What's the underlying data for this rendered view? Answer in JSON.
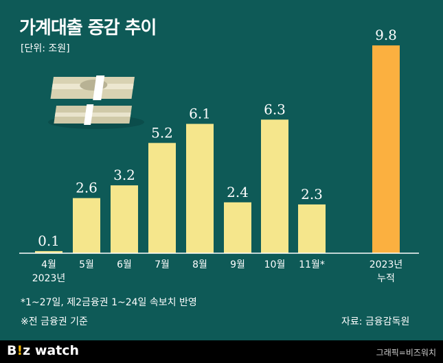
{
  "chart_data": {
    "type": "bar",
    "title": "가계대출 증감 추이",
    "unit_label": "[단위: 조원]",
    "categories": [
      {
        "line1": "4월",
        "line2": "2023년"
      },
      {
        "line1": "5월",
        "line2": ""
      },
      {
        "line1": "6월",
        "line2": ""
      },
      {
        "line1": "7월",
        "line2": ""
      },
      {
        "line1": "8월",
        "line2": ""
      },
      {
        "line1": "9월",
        "line2": ""
      },
      {
        "line1": "10월",
        "line2": ""
      },
      {
        "line1": "11월*",
        "line2": ""
      }
    ],
    "values": [
      0.1,
      2.6,
      3.2,
      5.2,
      6.1,
      2.4,
      6.3,
      2.3
    ],
    "value_labels": [
      "0.1",
      "2.6",
      "3.2",
      "5.2",
      "6.1",
      "2.4",
      "6.3",
      "2.3"
    ],
    "total": {
      "line1": "2023년",
      "line2": "누적",
      "value": 9.8,
      "value_label": "9.8"
    },
    "bar_color": "#f5e68c",
    "total_color": "#fbb040",
    "ylim": [
      0,
      10
    ]
  },
  "notes": {
    "note1": "*1~27일, 제2금융권 1~24일 속보치 반영",
    "note2": "※전 금융권 기준",
    "source": "자료: 금융감독원"
  },
  "footer": {
    "logo_b": "B",
    "logo_accent": "!",
    "logo_rest": "z watch",
    "credit": "그래픽=비즈워치"
  },
  "illustration": {
    "icon": "money-stack-icon"
  }
}
